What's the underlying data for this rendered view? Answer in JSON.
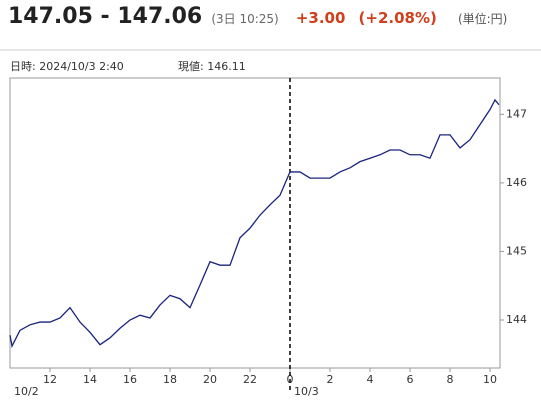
{
  "chart_data": {
    "type": "line",
    "price": "147.05 - 147.06",
    "time": "(3日 10:25)",
    "change": "+3.00",
    "change_pct": "(+2.08%)",
    "unit": "(単位:円)",
    "info_time": "日時: 2024/10/3  2:40",
    "info_value": "現値: 146.11",
    "x": [
      10,
      10.1,
      10.5,
      11,
      11.5,
      12,
      12.5,
      13,
      13.5,
      14,
      14.5,
      15,
      15.5,
      16,
      16.5,
      17,
      17.5,
      18,
      18.5,
      19,
      19.5,
      20,
      20.5,
      21,
      21.5,
      22,
      22.5,
      23,
      23.5,
      24,
      24.5,
      25,
      25.5,
      26,
      26.5,
      27,
      27.5,
      28,
      28.5,
      29,
      29.5,
      30,
      30.5,
      31,
      31.5,
      32,
      32.5,
      33,
      33.5,
      34,
      34.25,
      34.45
    ],
    "series": [
      {
        "color": "#1a237e",
        "values": [
          143.78,
          143.62,
          143.85,
          143.93,
          143.97,
          143.97,
          144.03,
          144.18,
          143.97,
          143.82,
          143.64,
          143.74,
          143.88,
          144.0,
          144.07,
          144.03,
          144.22,
          144.36,
          144.31,
          144.18,
          144.51,
          144.85,
          144.8,
          144.8,
          145.2,
          145.34,
          145.53,
          145.68,
          145.82,
          146.16,
          146.16,
          146.07,
          146.07,
          146.07,
          146.16,
          146.22,
          146.31,
          146.36,
          146.41,
          146.48,
          146.48,
          146.41,
          146.41,
          146.36,
          146.7,
          146.7,
          146.51,
          146.63,
          146.85,
          147.07,
          147.21,
          147.14
        ]
      }
    ],
    "xlim": [
      10,
      34.5
    ],
    "xticks": [
      12,
      14,
      16,
      18,
      20,
      22,
      {
        "value": 24,
        "label": "0"
      },
      {
        "value": 26,
        "label": "2"
      },
      {
        "value": 28,
        "label": "4"
      },
      {
        "value": 30,
        "label": "6"
      },
      {
        "value": 32,
        "label": "8"
      },
      {
        "value": 34,
        "label": "10"
      }
    ],
    "day_labels": [
      {
        "value": 10,
        "label": "10/2"
      },
      {
        "value": 24,
        "label": "10/3"
      }
    ],
    "ylim": [
      143.3,
      147.53
    ],
    "yticks": [
      144,
      145,
      146,
      147
    ]
  }
}
